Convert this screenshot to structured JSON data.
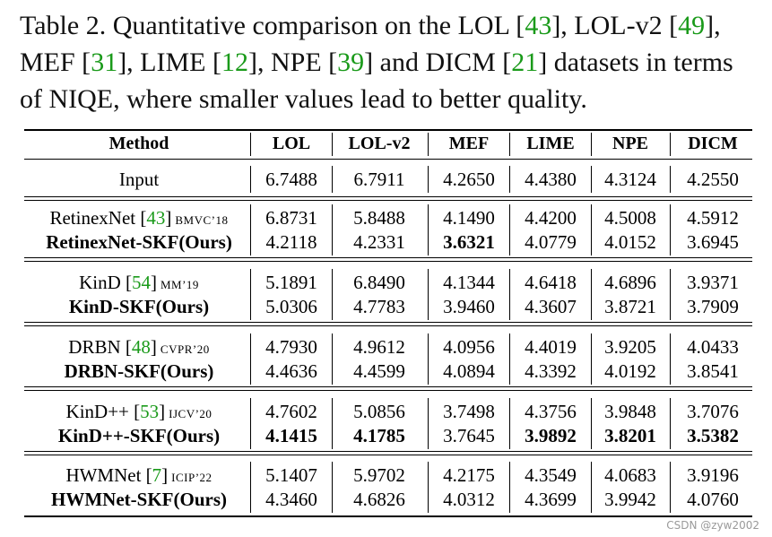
{
  "caption": {
    "label": "Table 2.",
    "parts": [
      {
        "text": " Quantitative comparison on the LOL [",
        "cite": false
      },
      {
        "text": "43",
        "cite": true
      },
      {
        "text": "], LOL-v2 [",
        "cite": false
      },
      {
        "text": "49",
        "cite": true
      },
      {
        "text": "], MEF [",
        "cite": false
      },
      {
        "text": "31",
        "cite": true
      },
      {
        "text": "], LIME [",
        "cite": false
      },
      {
        "text": "12",
        "cite": true
      },
      {
        "text": "], NPE [",
        "cite": false
      },
      {
        "text": "39",
        "cite": true
      },
      {
        "text": "] and DICM [",
        "cite": false
      },
      {
        "text": "21",
        "cite": true
      },
      {
        "text": "] datasets in terms of NIQE, where smaller values lead to better quality.",
        "cite": false
      }
    ]
  },
  "table": {
    "headers": [
      "Method",
      "LOL",
      "LOL-v2",
      "MEF",
      "LIME",
      "NPE",
      "DICM"
    ],
    "groups": [
      {
        "rows": [
          {
            "method": "Input",
            "ref": "",
            "venue": "",
            "ours": false,
            "values": [
              "6.7488",
              "6.7911",
              "4.2650",
              "4.4380",
              "4.3124",
              "4.2550"
            ],
            "best": []
          }
        ]
      },
      {
        "rows": [
          {
            "method": "RetinexNet",
            "ref": "43",
            "venue": "BMVC’18",
            "ours": false,
            "values": [
              "6.8731",
              "5.8488",
              "4.1490",
              "4.4200",
              "4.5008",
              "4.5912"
            ],
            "best": []
          },
          {
            "method": "RetinexNet-SKF(Ours)",
            "ref": "",
            "venue": "",
            "ours": true,
            "values": [
              "4.2118",
              "4.2331",
              "3.6321",
              "4.0779",
              "4.0152",
              "3.6945"
            ],
            "best": [
              2
            ]
          }
        ]
      },
      {
        "rows": [
          {
            "method": "KinD",
            "ref": "54",
            "venue": "MM’19",
            "ours": false,
            "values": [
              "5.1891",
              "6.8490",
              "4.1344",
              "4.6418",
              "4.6896",
              "3.9371"
            ],
            "best": []
          },
          {
            "method": "KinD-SKF(Ours)",
            "ref": "",
            "venue": "",
            "ours": true,
            "values": [
              "5.0306",
              "4.7783",
              "3.9460",
              "4.3607",
              "3.8721",
              "3.7909"
            ],
            "best": []
          }
        ]
      },
      {
        "rows": [
          {
            "method": "DRBN",
            "ref": "48",
            "venue": "CVPR’20",
            "ours": false,
            "values": [
              "4.7930",
              "4.9612",
              "4.0956",
              "4.4019",
              "3.9205",
              "4.0433"
            ],
            "best": []
          },
          {
            "method": "DRBN-SKF(Ours)",
            "ref": "",
            "venue": "",
            "ours": true,
            "values": [
              "4.4636",
              "4.4599",
              "4.0894",
              "4.3392",
              "4.0192",
              "3.8541"
            ],
            "best": []
          }
        ]
      },
      {
        "rows": [
          {
            "method": "KinD++",
            "ref": "53",
            "venue": "IJCV’20",
            "ours": false,
            "values": [
              "4.7602",
              "5.0856",
              "3.7498",
              "4.3756",
              "3.9848",
              "3.7076"
            ],
            "best": []
          },
          {
            "method": "KinD++-SKF(Ours)",
            "ref": "",
            "venue": "",
            "ours": true,
            "values": [
              "4.1415",
              "4.1785",
              "3.7645",
              "3.9892",
              "3.8201",
              "3.5382"
            ],
            "best": [
              0,
              1,
              3,
              4,
              5
            ]
          }
        ]
      },
      {
        "rows": [
          {
            "method": "HWMNet",
            "ref": "7",
            "venue": "ICIP’22",
            "ours": false,
            "values": [
              "5.1407",
              "5.9702",
              "4.2175",
              "4.3549",
              "4.0683",
              "3.9196"
            ],
            "best": []
          },
          {
            "method": "HWMNet-SKF(Ours)",
            "ref": "",
            "venue": "",
            "ours": true,
            "values": [
              "4.3460",
              "4.6826",
              "4.0312",
              "4.3699",
              "3.9942",
              "4.0760"
            ],
            "best": []
          }
        ]
      }
    ]
  },
  "watermark": "CSDN @zyw2002",
  "colors": {
    "cite": "#1a9a1a",
    "text": "#000000",
    "watermark": "#9a9a9a"
  }
}
